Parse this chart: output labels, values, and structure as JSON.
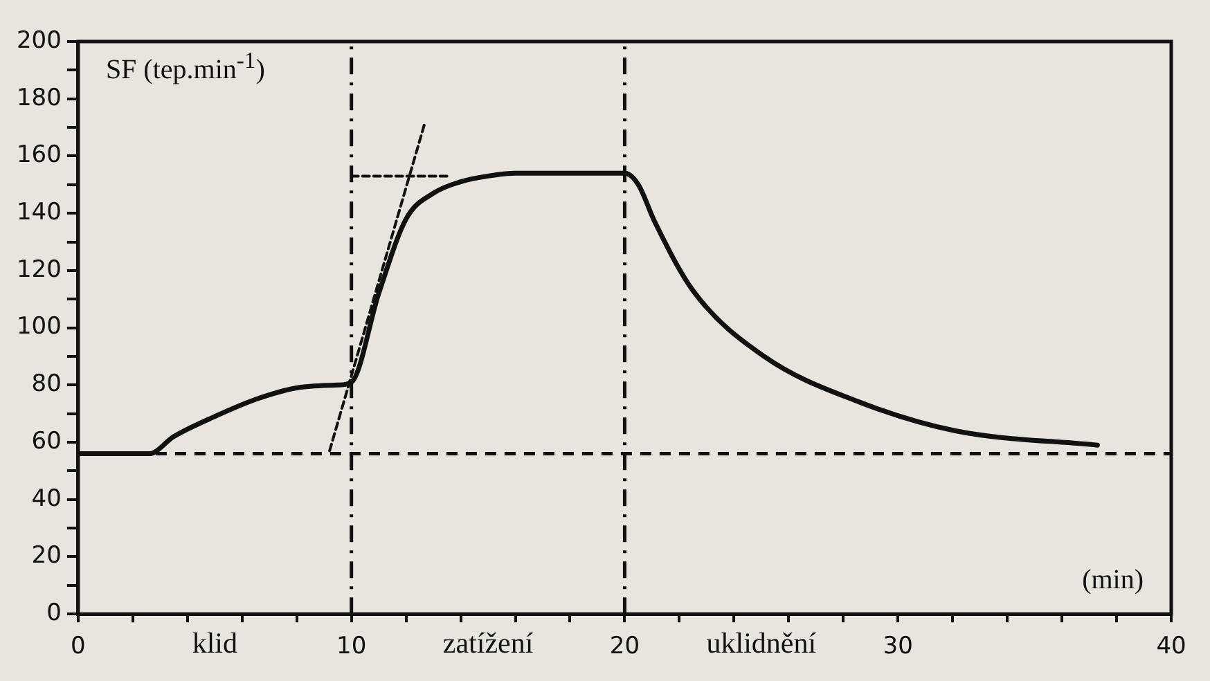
{
  "chart_data": {
    "type": "line",
    "ylabel": "SF (tep.min$^{-1}$)",
    "xlabel": "(min)",
    "annotations": [
      "klid",
      "zatížení",
      "uklidnění"
    ],
    "xlim": [
      0,
      40
    ],
    "xticks": [
      0,
      {
        "value": 2,
        "label": null
      },
      {
        "value": 4,
        "label": null
      },
      {
        "value": 6,
        "label": null
      },
      {
        "value": 8,
        "label": null
      },
      10,
      {
        "value": 12,
        "label": null
      },
      {
        "value": 14,
        "label": null
      },
      {
        "value": 16,
        "label": null
      },
      {
        "value": 18,
        "label": null
      },
      20,
      {
        "value": 22,
        "label": null
      },
      {
        "value": 24,
        "label": null
      },
      {
        "value": 26,
        "label": null
      },
      {
        "value": 28,
        "label": null
      },
      30,
      {
        "value": 32,
        "label": null
      },
      {
        "value": 34,
        "label": null
      },
      {
        "value": 36,
        "label": null
      },
      {
        "value": 38,
        "label": null
      },
      40
    ],
    "ylim": [
      0,
      200
    ],
    "yticks": [
      0,
      {
        "value": 10,
        "label": null
      },
      20,
      {
        "value": 30,
        "label": null
      },
      40,
      {
        "value": 50,
        "label": null
      },
      60,
      {
        "value": 70,
        "label": null
      },
      80,
      {
        "value": 90,
        "label": null
      },
      100,
      {
        "value": 110,
        "label": null
      },
      120,
      {
        "value": 130,
        "label": null
      },
      140,
      {
        "value": 150,
        "label": null
      },
      160,
      {
        "value": 170,
        "label": null
      },
      180,
      {
        "value": 190,
        "label": null
      },
      200
    ],
    "grid": false,
    "legend": false,
    "marker": "none",
    "series": [
      {
        "color": "#111111",
        "line_style": "solid",
        "x": [
          0,
          2.6,
          3.5,
          5,
          6.5,
          8,
          9.5,
          10,
          11,
          12,
          13,
          14,
          15,
          16,
          20,
          20.5,
          21.1,
          22.5,
          25.1,
          28.6,
          32.1,
          37.3
        ],
        "values": [
          56,
          56,
          62,
          69,
          75,
          79,
          80,
          81,
          112,
          138,
          147,
          151,
          153,
          154,
          154,
          150,
          137,
          113,
          90,
          74,
          64,
          59
        ]
      },
      {
        "color": "#111111",
        "line_style": "dashed",
        "x": [
          9.2,
          12.7
        ],
        "values": [
          57,
          172
        ]
      },
      {
        "color": "#111111",
        "line_style": "dashed",
        "x": [
          10,
          13.5
        ],
        "values": [
          153,
          153
        ]
      }
    ],
    "ref_lines": [
      {
        "axis": "x",
        "value": 10,
        "line_style": "dashdot",
        "color": "#111111"
      },
      {
        "axis": "x",
        "value": 20,
        "line_style": "dashdot",
        "color": "#111111"
      },
      {
        "axis": "y",
        "value": 56,
        "line_style": "dashed",
        "color": "#111111"
      }
    ]
  }
}
